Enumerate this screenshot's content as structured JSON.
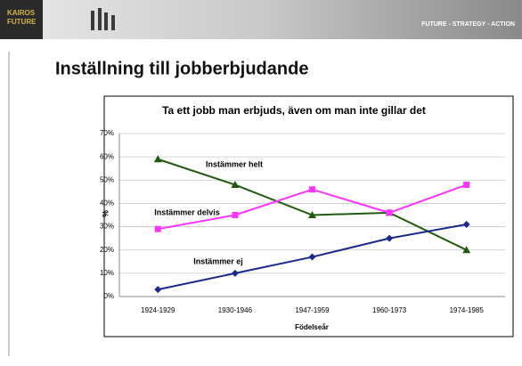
{
  "header": {
    "logo": [
      "KAIROS",
      "FUTURE"
    ],
    "tagline": "FUTURE - STRATEGY - ACTION"
  },
  "slide_title": "Inställning till jobberbjudande",
  "chart_data": {
    "type": "line",
    "title": "Ta ett jobb man erbjuds, även om man inte gillar det",
    "x_label": "Födelseår",
    "y_label": "%",
    "categories": [
      "1924-1929",
      "1930-1946",
      "1947-1959",
      "1960-1973",
      "1974-1985"
    ],
    "series": [
      {
        "name": "Instämmer helt",
        "color": "#1f5a0f",
        "marker": "triangle",
        "values": [
          59,
          48,
          35,
          36,
          20
        ]
      },
      {
        "name": "Instämmer delvis",
        "color": "#ff33ff",
        "marker": "square",
        "values": [
          29,
          35,
          46,
          36,
          48
        ]
      },
      {
        "name": "Instämmer ej",
        "color": "#1a2a8c",
        "marker": "diamond",
        "values": [
          3,
          10,
          17,
          25,
          31
        ]
      }
    ],
    "ylim": [
      0,
      70
    ],
    "yticks": [
      {
        "value": 0,
        "label": "0%"
      },
      {
        "value": 10,
        "label": "10%"
      },
      {
        "value": 20,
        "label": "20%"
      },
      {
        "value": 30,
        "label": "30%"
      },
      {
        "value": 40,
        "label": "40%"
      },
      {
        "value": 50,
        "label": "50%"
      },
      {
        "value": 60,
        "label": "60%"
      },
      {
        "value": 70,
        "label": "70%"
      }
    ],
    "grid": true
  }
}
